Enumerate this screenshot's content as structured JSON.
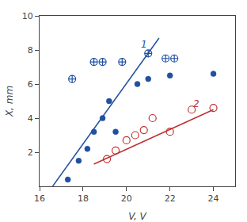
{
  "chart_data": {
    "type": "scatter",
    "xlabel": "V, V",
    "ylabel": "X, mm",
    "xlim": [
      16,
      25
    ],
    "ylim": [
      0,
      10
    ],
    "xticks": [
      16,
      18,
      20,
      22,
      24
    ],
    "yticks": [
      2,
      4,
      6,
      8,
      10
    ],
    "grid": false,
    "series": [
      {
        "type": "scatter",
        "marker": "circle",
        "color": "#2050a0",
        "x": [
          17.3,
          17.8,
          18.2,
          18.5,
          18.9,
          19.2,
          19.5,
          20.5,
          21.0,
          22.0,
          24.0
        ],
        "values": [
          0.4,
          1.5,
          2.2,
          3.2,
          4.0,
          5.0,
          3.2,
          6.0,
          6.3,
          6.5,
          6.6
        ]
      },
      {
        "type": "scatter",
        "marker": "circle-cross-open",
        "color": "#2050a0",
        "x": [
          17.5,
          18.5,
          18.9,
          19.8,
          21.0,
          21.8,
          22.2
        ],
        "values": [
          6.3,
          7.3,
          7.3,
          7.3,
          7.8,
          7.5,
          7.5
        ]
      },
      {
        "type": "scatter",
        "marker": "circle-open",
        "color": "#c03030",
        "x": [
          19.1,
          19.5,
          20.0,
          20.4,
          20.8,
          21.2,
          22.0,
          23.0,
          24.0
        ],
        "values": [
          1.6,
          2.1,
          2.7,
          3.0,
          3.3,
          4.0,
          3.2,
          4.5,
          4.6
        ]
      },
      {
        "type": "line",
        "line_style": "solid",
        "color": "#2050a0",
        "x": [
          16.6,
          21.5
        ],
        "values": [
          0.0,
          8.7
        ]
      },
      {
        "type": "line",
        "line_style": "solid",
        "color": "#c03030",
        "x": [
          18.5,
          24.0
        ],
        "values": [
          1.3,
          4.5
        ]
      }
    ],
    "annotations": [
      {
        "text": "1",
        "x": 20.6,
        "y": 7.9,
        "color": "#2050a0"
      },
      {
        "text": "2",
        "x": 23.0,
        "y": 4.4,
        "color": "#c03030"
      }
    ]
  }
}
